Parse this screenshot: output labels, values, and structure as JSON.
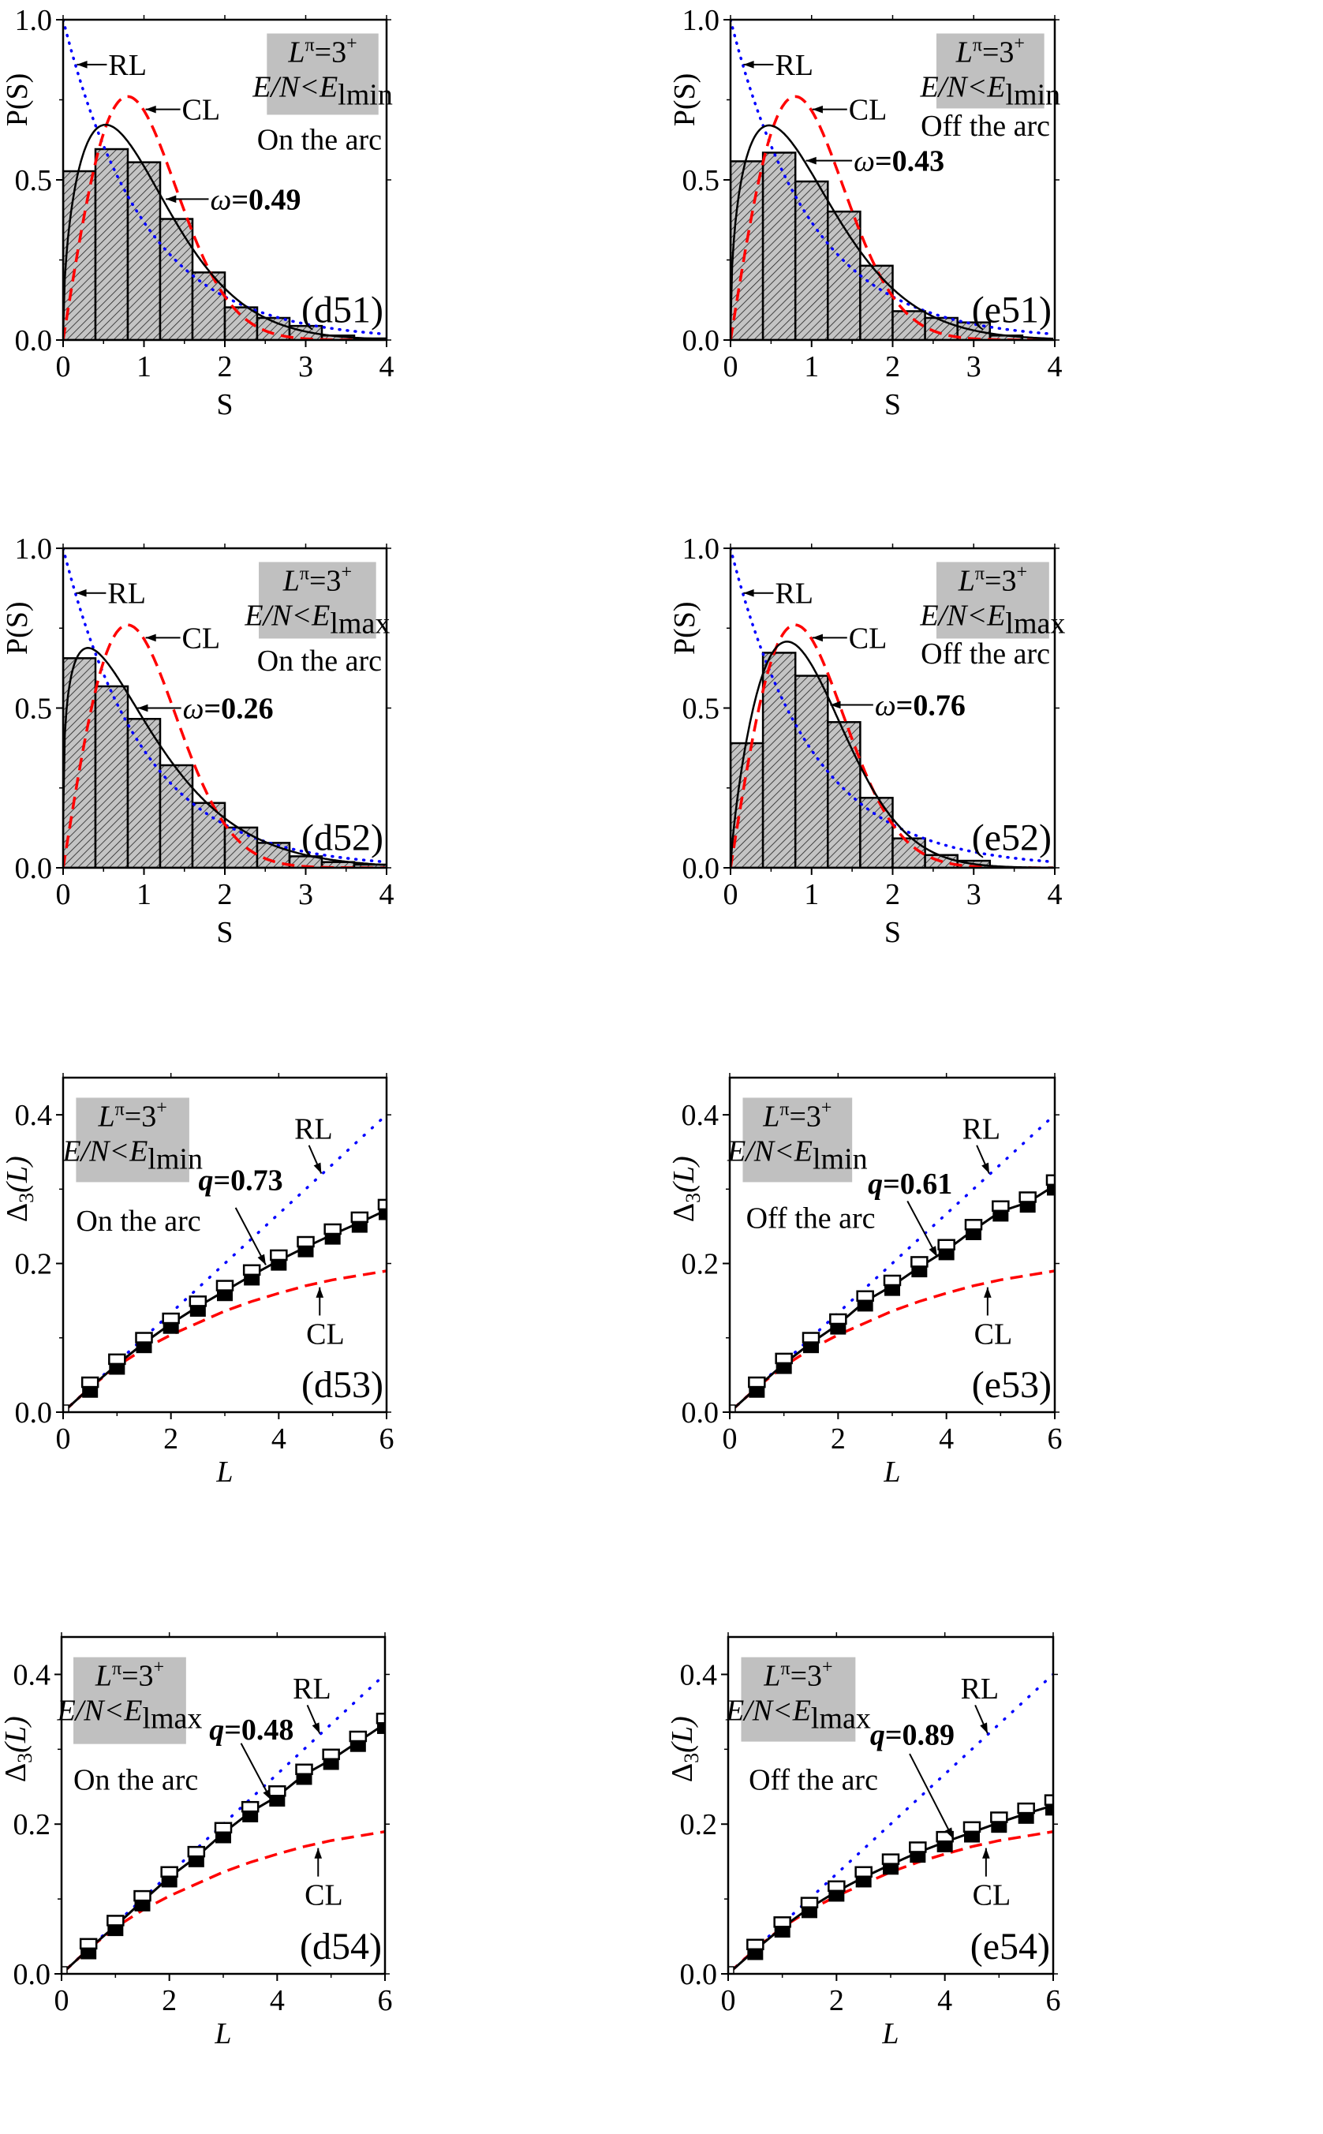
{
  "colors": {
    "RL": "#0000ff",
    "CL": "#ff0000",
    "fit": "#000000",
    "bar_fill": "#c4c4c4",
    "box_fill": "#c0c0c0"
  },
  "chart_data": [
    {
      "id": "d51",
      "type": "bar",
      "panel_label": "(d51)",
      "xlabel": "S",
      "ylabel": "P(S)",
      "xlim": [
        0,
        4
      ],
      "ylim": [
        0,
        1
      ],
      "xticks": [
        "0",
        "1",
        "2",
        "3",
        "4"
      ],
      "yticks": [
        "0.0",
        "0.5",
        "1.0"
      ],
      "bin_edges": [
        0,
        0.4,
        0.8,
        1.2,
        1.6,
        2.0,
        2.4,
        2.8,
        3.2,
        3.6,
        4.0
      ],
      "values": [
        0.527,
        0.596,
        0.555,
        0.378,
        0.211,
        0.102,
        0.069,
        0.044,
        0.014,
        0.005
      ],
      "fit_parameter": 0.49,
      "labels": {
        "rl": "RL",
        "cl": "CL",
        "fit_symbol": "ω",
        "fit_value": "=0.49",
        "region": "On the arc"
      },
      "box": {
        "symbol": "L",
        "parity": "π",
        "value": "=3",
        "sign": "+",
        "energy": "E/N<E",
        "energy_sub": "lmin"
      }
    },
    {
      "id": "e51",
      "type": "bar",
      "panel_label": "(e51)",
      "xlabel": "S",
      "ylabel": "P(S)",
      "xlim": [
        0,
        4
      ],
      "ylim": [
        0,
        1
      ],
      "xticks": [
        "0",
        "1",
        "2",
        "3",
        "4"
      ],
      "yticks": [
        "0.0",
        "0.5",
        "1.0"
      ],
      "bin_edges": [
        0,
        0.4,
        0.8,
        1.2,
        1.6,
        2.0,
        2.4,
        2.8,
        3.2,
        3.6,
        4.0
      ],
      "values": [
        0.558,
        0.585,
        0.495,
        0.401,
        0.232,
        0.09,
        0.069,
        0.055,
        0.014,
        0.0
      ],
      "fit_parameter": 0.43,
      "labels": {
        "rl": "RL",
        "cl": "CL",
        "fit_symbol": "ω",
        "fit_value": "=0.43",
        "region": "Off the arc"
      },
      "box": {
        "symbol": "L",
        "parity": "π",
        "value": "=3",
        "sign": "+",
        "energy": "E/N<E",
        "energy_sub": "lmin"
      }
    },
    {
      "id": "d52",
      "type": "bar",
      "panel_label": "(d52)",
      "xlabel": "S",
      "ylabel": "P(S)",
      "xlim": [
        0,
        4
      ],
      "ylim": [
        0,
        1
      ],
      "xticks": [
        "0",
        "1",
        "2",
        "3",
        "4"
      ],
      "yticks": [
        "0.0",
        "0.5",
        "1.0"
      ],
      "bin_edges": [
        0,
        0.4,
        0.8,
        1.2,
        1.6,
        2.0,
        2.4,
        2.8,
        3.2,
        3.6,
        4.0
      ],
      "values": [
        0.656,
        0.568,
        0.466,
        0.321,
        0.203,
        0.126,
        0.078,
        0.036,
        0.018,
        0.01
      ],
      "fit_parameter": 0.26,
      "labels": {
        "rl": "RL",
        "cl": "CL",
        "fit_symbol": "ω",
        "fit_value": "=0.26",
        "region": "On the arc"
      },
      "box": {
        "symbol": "L",
        "parity": "π",
        "value": "=3",
        "sign": "+",
        "energy": "E/N<E",
        "energy_sub": "lmax"
      }
    },
    {
      "id": "e52",
      "type": "bar",
      "panel_label": "(e52)",
      "xlabel": "S",
      "ylabel": "P(S)",
      "xlim": [
        0,
        4
      ],
      "ylim": [
        0,
        1
      ],
      "xticks": [
        "0",
        "1",
        "2",
        "3",
        "4"
      ],
      "yticks": [
        "0.0",
        "0.5",
        "1.0"
      ],
      "bin_edges": [
        0,
        0.4,
        0.8,
        1.2,
        1.6,
        2.0,
        2.4,
        2.8,
        3.2,
        3.6,
        4.0
      ],
      "values": [
        0.39,
        0.673,
        0.601,
        0.456,
        0.219,
        0.092,
        0.04,
        0.022,
        0.0,
        0.0
      ],
      "fit_parameter": 0.76,
      "labels": {
        "rl": "RL",
        "cl": "CL",
        "fit_symbol": "ω",
        "fit_value": "=0.76",
        "region": "Off the arc"
      },
      "box": {
        "symbol": "L",
        "parity": "π",
        "value": "=3",
        "sign": "+",
        "energy": "E/N<E",
        "energy_sub": "lmax"
      }
    },
    {
      "id": "d53",
      "type": "line",
      "panel_label": "(d53)",
      "xlabel": "L",
      "ylabel": "Δ",
      "ylabel_sub": "3",
      "ylabel_arg": "(L)",
      "xlim": [
        0,
        6
      ],
      "ylim": [
        0,
        0.45
      ],
      "xticks": [
        "0",
        "2",
        "4",
        "6"
      ],
      "yticks": [
        "0.0",
        "0.2",
        "0.4"
      ],
      "x": [
        0.5,
        1,
        1.5,
        2,
        2.5,
        3,
        3.5,
        4,
        4.5,
        5,
        5.5,
        6
      ],
      "open": [
        0.036,
        0.067,
        0.096,
        0.122,
        0.145,
        0.166,
        0.187,
        0.207,
        0.225,
        0.242,
        0.258,
        0.275
      ],
      "filled": [
        0.03,
        0.061,
        0.09,
        0.116,
        0.139,
        0.16,
        0.181,
        0.201,
        0.219,
        0.236,
        0.252,
        0.269
      ],
      "cl": [
        0.033,
        0.062,
        0.085,
        0.104,
        0.12,
        0.136,
        0.149,
        0.16,
        0.17,
        0.178,
        0.184,
        0.19
      ],
      "rl_slope": 0.0667,
      "fit_parameter": 0.73,
      "labels": {
        "rl": "RL",
        "cl": "CL",
        "fit_symbol": "q",
        "fit_value": "=0.73",
        "region": "On the arc"
      },
      "box": {
        "symbol": "L",
        "parity": "π",
        "value": "=3",
        "sign": "+",
        "energy": "E/N<E",
        "energy_sub": "lmin"
      }
    },
    {
      "id": "e53",
      "type": "line",
      "panel_label": "(e53)",
      "xlabel": "L",
      "ylabel": "Δ",
      "ylabel_sub": "3",
      "ylabel_arg": "(L)",
      "xlim": [
        0,
        6
      ],
      "ylim": [
        0,
        0.45
      ],
      "xticks": [
        "0",
        "2",
        "4",
        "6"
      ],
      "yticks": [
        "0.0",
        "0.2",
        "0.4"
      ],
      "x": [
        0.5,
        1,
        1.5,
        2,
        2.5,
        3,
        3.5,
        4,
        4.5,
        5,
        5.5,
        6
      ],
      "open": [
        0.036,
        0.068,
        0.096,
        0.121,
        0.152,
        0.173,
        0.198,
        0.221,
        0.248,
        0.273,
        0.285,
        0.308
      ],
      "filled": [
        0.03,
        0.062,
        0.09,
        0.115,
        0.146,
        0.167,
        0.192,
        0.215,
        0.242,
        0.267,
        0.279,
        0.302
      ],
      "cl": [
        0.033,
        0.062,
        0.085,
        0.104,
        0.12,
        0.136,
        0.149,
        0.16,
        0.17,
        0.178,
        0.184,
        0.19
      ],
      "rl_slope": 0.0667,
      "fit_parameter": 0.61,
      "labels": {
        "rl": "RL",
        "cl": "CL",
        "fit_symbol": "q",
        "fit_value": "=0.61",
        "region": "Off the arc"
      },
      "box": {
        "symbol": "L",
        "parity": "π",
        "value": "=3",
        "sign": "+",
        "energy": "E/N<E",
        "energy_sub": "lmin"
      }
    },
    {
      "id": "d54",
      "type": "line",
      "panel_label": "(d54)",
      "xlabel": "L",
      "ylabel": "Δ",
      "ylabel_sub": "3",
      "ylabel_arg": "(L)",
      "xlim": [
        0,
        6
      ],
      "ylim": [
        0,
        0.45
      ],
      "xticks": [
        "0",
        "2",
        "4",
        "6"
      ],
      "yticks": [
        "0.0",
        "0.2",
        "0.4"
      ],
      "x": [
        0.5,
        1,
        1.5,
        2,
        2.5,
        3,
        3.5,
        4,
        4.5,
        5,
        5.5,
        6
      ],
      "open": [
        0.036,
        0.067,
        0.1,
        0.132,
        0.159,
        0.191,
        0.219,
        0.24,
        0.269,
        0.289,
        0.313,
        0.337
      ],
      "filled": [
        0.03,
        0.061,
        0.094,
        0.126,
        0.153,
        0.185,
        0.213,
        0.234,
        0.263,
        0.283,
        0.307,
        0.331
      ],
      "cl": [
        0.033,
        0.062,
        0.085,
        0.104,
        0.12,
        0.136,
        0.149,
        0.16,
        0.17,
        0.178,
        0.184,
        0.19
      ],
      "rl_slope": 0.0667,
      "fit_parameter": 0.48,
      "labels": {
        "rl": "RL",
        "cl": "CL",
        "fit_symbol": "q",
        "fit_value": "=0.48",
        "region": "On the arc"
      },
      "box": {
        "symbol": "L",
        "parity": "π",
        "value": "=3",
        "sign": "+",
        "energy": "E/N<E",
        "energy_sub": "lmax"
      }
    },
    {
      "id": "e54",
      "type": "line",
      "panel_label": "(e54)",
      "xlabel": "L",
      "ylabel": "Δ",
      "ylabel_sub": "3",
      "ylabel_arg": "(L)",
      "xlim": [
        0,
        6
      ],
      "ylim": [
        0,
        0.45
      ],
      "xticks": [
        "0",
        "2",
        "4",
        "6"
      ],
      "yticks": [
        "0.0",
        "0.2",
        "0.4"
      ],
      "x": [
        0.5,
        1,
        1.5,
        2,
        2.5,
        3,
        3.5,
        4,
        4.5,
        5,
        5.5,
        6
      ],
      "open": [
        0.035,
        0.065,
        0.091,
        0.113,
        0.132,
        0.149,
        0.165,
        0.179,
        0.192,
        0.205,
        0.217,
        0.228
      ],
      "filled": [
        0.029,
        0.059,
        0.085,
        0.107,
        0.126,
        0.143,
        0.159,
        0.173,
        0.186,
        0.199,
        0.211,
        0.222
      ],
      "cl": [
        0.033,
        0.062,
        0.085,
        0.104,
        0.12,
        0.136,
        0.149,
        0.16,
        0.17,
        0.178,
        0.184,
        0.19
      ],
      "rl_slope": 0.0667,
      "fit_parameter": 0.89,
      "labels": {
        "rl": "RL",
        "cl": "CL",
        "fit_symbol": "q",
        "fit_value": "=0.89",
        "region": "Off the arc"
      },
      "box": {
        "symbol": "L",
        "parity": "π",
        "value": "=3",
        "sign": "+",
        "energy": "E/N<E",
        "energy_sub": "lmax"
      }
    }
  ]
}
